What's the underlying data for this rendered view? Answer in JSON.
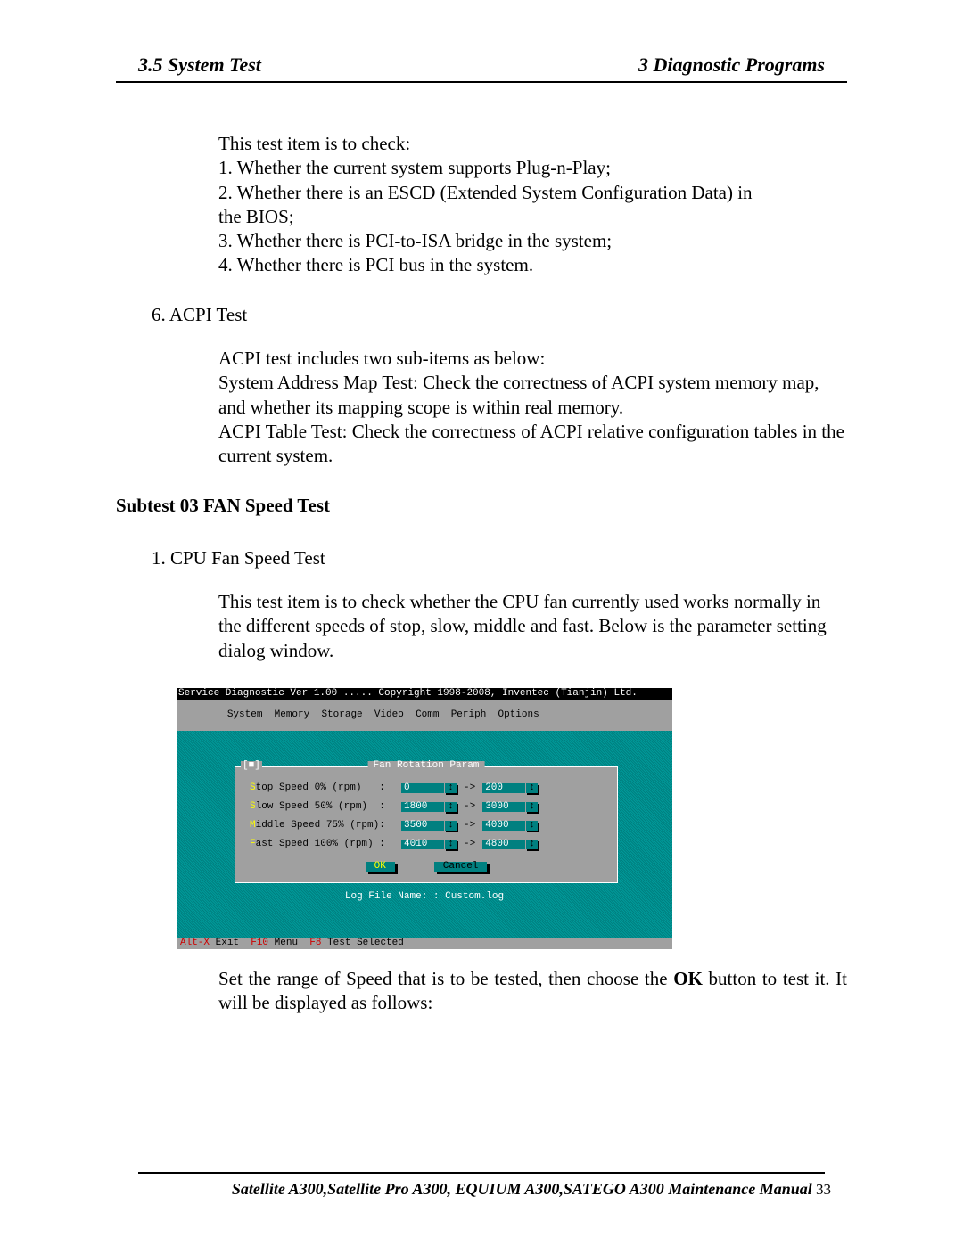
{
  "header": {
    "left": "3.5 System Test",
    "right": "3  Diagnostic Programs"
  },
  "section_intro": "This test item is to check:",
  "checklist": {
    "i1": "1.   Whether the current system supports Plug-n-Play;",
    "i2a": "2.   Whether there is an ESCD (Extended System Configuration Data) in",
    "i2b": "the BIOS;",
    "i3": "3.   Whether there is PCI-to-ISA bridge in the system;",
    "i4": "4.   Whether there is PCI bus in the system."
  },
  "acpi": {
    "num_label": "6.   ACPI Test",
    "line1": "ACPI test includes two sub-items as below:",
    "line2": "System Address Map Test: Check the correctness of ACPI system memory map, and whether its mapping scope is within real memory.",
    "line3": "ACPI Table Test: Check the correctness of ACPI relative configuration tables in the current system."
  },
  "subtest_title": "Subtest 03  FAN Speed Test",
  "cpu_fan": {
    "heading": "1. CPU Fan Speed Test",
    "para": "This test item is to check whether the CPU fan currently used works normally in the different speeds of stop, slow, middle and fast. Below is the parameter setting dialog window."
  },
  "dos": {
    "title": "Service Diagnostic Ver 1.00 ..... Copyright 1998-2008, Inventec (Tianjin) Ltd.",
    "menus": [
      "System",
      "Memory",
      "Storage",
      "Video",
      "Comm",
      "Periph",
      "Options"
    ],
    "dialog_title": "Fan Rotation Param",
    "close_marker": "[■]",
    "rows": [
      {
        "hot": "S",
        "rest": "top Speed 0% (rpm)   :",
        "from": "0",
        "to": "200"
      },
      {
        "hot": "S",
        "rest": "low Speed 50% (rpm)  :",
        "from": "1800",
        "to": "3000"
      },
      {
        "hot": "M",
        "rest": "iddle Speed 75% (rpm):",
        "from": "3500",
        "to": "4000"
      },
      {
        "hot": "F",
        "rest": "ast Speed 100% (rpm) :",
        "from": "4010",
        "to": "4800"
      }
    ],
    "ok_label": "OK",
    "cancel_label": "Cancel",
    "log_line": "Log File Name: : Custom.log",
    "status": {
      "k1": "Alt-X",
      "l1": " Exit  ",
      "k2": "F10",
      "l2": " Menu  ",
      "k3": "F8",
      "l3": " Test Selected"
    },
    "colors": {
      "bg_teal": "#008080",
      "panel_gray": "#a0a0a0",
      "hotkey_yellow": "#ffff00",
      "hotkey_red": "#cc0000"
    }
  },
  "post_dialog_text_pre": "Set the range of Speed that is to be tested, then choose the ",
  "post_dialog_ok": "OK",
  "post_dialog_text_post": " button to test it. It will be displayed as follows:",
  "footer": {
    "text": "Satellite A300,Satellite Pro A300, EQUIUM A300,SATEGO A300 Maintenance Manual",
    "page": " 33"
  }
}
